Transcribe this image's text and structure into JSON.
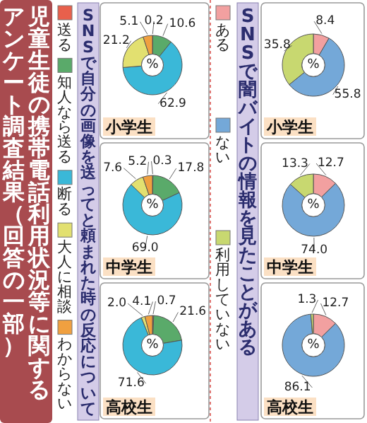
{
  "chart_data": [
    {
      "type": "donut",
      "title": "小学生",
      "subtitle": "SNSで自分の画像を送ってと頼まれた時の反応について",
      "annotations": [
        "%",
        "児童生徒の携帯電話利用状況等に関する",
        "アンケート調査結果（回答の一部）"
      ],
      "legend": "left",
      "categories": [
        "送る",
        "知人なら送る",
        "断る",
        "大人に相談",
        "わからない"
      ],
      "values": [
        0.2,
        10.6,
        62.9,
        21.2,
        5.1
      ],
      "value_labels": [
        "0.2",
        "10.6",
        "62.9",
        "21.2",
        "5.1"
      ],
      "colors": [
        "#e8604c",
        "#5aaa6a",
        "#3ab8d8",
        "#e2e070",
        "#f0a040"
      ]
    },
    {
      "type": "donut",
      "title": "中学生",
      "annotations": [
        "%"
      ],
      "categories": [
        null,
        null,
        null,
        null,
        null
      ],
      "values": [
        0.3,
        17.8,
        69.0,
        7.6,
        5.2
      ],
      "value_labels": [
        "0.3",
        "17.8",
        "69.0",
        "7.6",
        "5.2"
      ],
      "colors": [
        "#e8604c",
        "#5aaa6a",
        "#3ab8d8",
        "#e2e070",
        "#f0a040"
      ]
    },
    {
      "type": "donut",
      "title": "高校生",
      "annotations": [
        "%"
      ],
      "categories": [
        null,
        null,
        null,
        null,
        null
      ],
      "values": [
        0.7,
        21.6,
        71.6,
        2.0,
        4.1
      ],
      "value_labels": [
        "0.7",
        "21.6",
        "71.6",
        "2.0",
        "4.1"
      ],
      "colors": [
        "#e8604c",
        "#5aaa6a",
        "#3ab8d8",
        "#e2e070",
        "#f0a040"
      ]
    },
    {
      "type": "donut",
      "title": "小学生",
      "subtitle": "SNSで闇バイトの情報を見たことがある",
      "annotations": [
        "%"
      ],
      "legend": "left",
      "categories": [
        "ある",
        "ない",
        "利用していない"
      ],
      "values": [
        8.4,
        55.8,
        35.8
      ],
      "value_labels": [
        "8.4",
        "55.8",
        "35.8"
      ],
      "colors": [
        "#f2a0a0",
        "#74a8d8",
        "#c8d870"
      ]
    },
    {
      "type": "donut",
      "title": "中学生",
      "annotations": [
        "%"
      ],
      "categories": [
        null,
        null,
        null
      ],
      "values": [
        12.7,
        74.0,
        13.3
      ],
      "value_labels": [
        "12.7",
        "74.0",
        "13.3"
      ],
      "colors": [
        "#f2a0a0",
        "#74a8d8",
        "#c8d870"
      ]
    },
    {
      "type": "donut",
      "title": "高校生",
      "annotations": [
        "%"
      ],
      "categories": [
        null,
        null,
        null
      ],
      "values": [
        12.7,
        86.1,
        1.3
      ],
      "value_labels": [
        "12.7",
        "86.1",
        "1.3"
      ],
      "colors": [
        "#f2a0a0",
        "#74a8d8",
        "#c8d870"
      ]
    }
  ]
}
